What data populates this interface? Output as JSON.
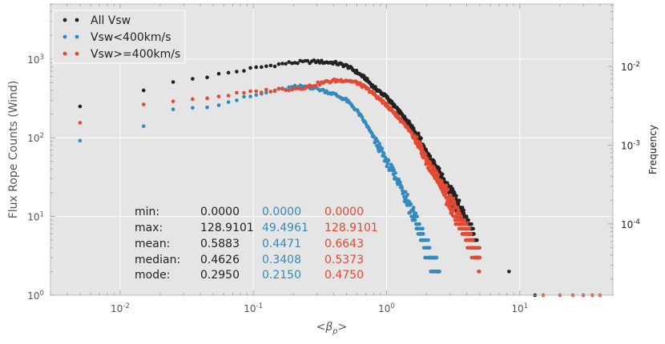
{
  "chart_data": {
    "type": "scatter",
    "title": "",
    "xlabel": "<β_p>",
    "ylabel": "Flux Rope Counts (Wind)",
    "ylabel_right": "Frequency",
    "x_scale": "log",
    "y_scale": "log",
    "xlim": [
      0.003,
      50
    ],
    "ylim": [
      1,
      5000
    ],
    "y2lim": [
      1.244e-05,
      0.0622
    ],
    "grid": true,
    "background": "#e5e5e5",
    "x_ticks": [
      {
        "value": 0.01,
        "base": "10",
        "exp": "-2"
      },
      {
        "value": 0.1,
        "base": "10",
        "exp": "-1"
      },
      {
        "value": 1,
        "base": "10",
        "exp": "0"
      },
      {
        "value": 10,
        "base": "10",
        "exp": "1"
      }
    ],
    "y_ticks": [
      {
        "value": 1,
        "base": "10",
        "exp": "0"
      },
      {
        "value": 10,
        "base": "10",
        "exp": "1"
      },
      {
        "value": 100,
        "base": "10",
        "exp": "2"
      },
      {
        "value": 1000,
        "base": "10",
        "exp": "3"
      }
    ],
    "y2_ticks": [
      {
        "value": 0.0001,
        "base": "10",
        "exp": "-4"
      },
      {
        "value": 0.001,
        "base": "10",
        "exp": "-3"
      },
      {
        "value": 0.01,
        "base": "10",
        "exp": "-2"
      }
    ],
    "legend": {
      "position": "top-left",
      "entries": [
        {
          "label": "All Vsw",
          "color": "#222222"
        },
        {
          "label": "Vsw<400km/s",
          "color": "#348abd"
        },
        {
          "label": "Vsw>=400km/s",
          "color": "#e24a33"
        }
      ]
    },
    "stats_table": {
      "rows": [
        {
          "label": "min:",
          "values": [
            "0.0000",
            "0.0000",
            "0.0000"
          ]
        },
        {
          "label": "max:",
          "values": [
            "128.9101",
            "49.4961",
            "128.9101"
          ]
        },
        {
          "label": "mean:",
          "values": [
            "0.5883",
            "0.4471",
            "0.6643"
          ]
        },
        {
          "label": "median:",
          "values": [
            "0.4626",
            "0.3408",
            "0.5373"
          ]
        },
        {
          "label": "mode:",
          "values": [
            "0.2950",
            "0.2150",
            "0.4750"
          ]
        }
      ]
    },
    "series": [
      {
        "name": "All Vsw",
        "color": "#222222",
        "anchors": [
          [
            0.005,
            250
          ],
          [
            0.015,
            400
          ],
          [
            0.025,
            510
          ],
          [
            0.035,
            560
          ],
          [
            0.05,
            620
          ],
          [
            0.07,
            680
          ],
          [
            0.1,
            760
          ],
          [
            0.15,
            850
          ],
          [
            0.2,
            900
          ],
          [
            0.25,
            920
          ],
          [
            0.3,
            930
          ],
          [
            0.35,
            910
          ],
          [
            0.4,
            900
          ],
          [
            0.5,
            820
          ],
          [
            0.6,
            680
          ],
          [
            0.7,
            560
          ],
          [
            0.8,
            440
          ],
          [
            1.0,
            330
          ],
          [
            1.2,
            230
          ],
          [
            1.5,
            150
          ],
          [
            1.8,
            90
          ],
          [
            2.0,
            60
          ],
          [
            2.5,
            35
          ],
          [
            3.0,
            20
          ],
          [
            3.5,
            12
          ],
          [
            4.0,
            8
          ],
          [
            4.5,
            5
          ],
          [
            5.0,
            3
          ]
        ],
        "tail": [
          [
            8.3,
            2
          ],
          [
            13.0,
            1
          ]
        ]
      },
      {
        "name": "Vsw<400km/s",
        "color": "#348abd",
        "anchors": [
          [
            0.005,
            92
          ],
          [
            0.015,
            140
          ],
          [
            0.025,
            230
          ],
          [
            0.035,
            240
          ],
          [
            0.05,
            260
          ],
          [
            0.07,
            295
          ],
          [
            0.1,
            340
          ],
          [
            0.15,
            400
          ],
          [
            0.2,
            440
          ],
          [
            0.25,
            450
          ],
          [
            0.3,
            420
          ],
          [
            0.35,
            390
          ],
          [
            0.4,
            360
          ],
          [
            0.5,
            300
          ],
          [
            0.6,
            220
          ],
          [
            0.7,
            150
          ],
          [
            0.8,
            100
          ],
          [
            0.9,
            70
          ],
          [
            1.0,
            50
          ],
          [
            1.2,
            30
          ],
          [
            1.4,
            18
          ],
          [
            1.6,
            10
          ],
          [
            1.8,
            6
          ],
          [
            2.0,
            4
          ],
          [
            2.2,
            2.5
          ],
          [
            2.5,
            2
          ]
        ],
        "tail": []
      },
      {
        "name": "Vsw>=400km/s",
        "color": "#e24a33",
        "anchors": [
          [
            0.005,
            155
          ],
          [
            0.015,
            265
          ],
          [
            0.025,
            290
          ],
          [
            0.035,
            310
          ],
          [
            0.05,
            330
          ],
          [
            0.07,
            355
          ],
          [
            0.1,
            380
          ],
          [
            0.15,
            410
          ],
          [
            0.2,
            420
          ],
          [
            0.25,
            440
          ],
          [
            0.3,
            480
          ],
          [
            0.35,
            510
          ],
          [
            0.4,
            530
          ],
          [
            0.5,
            540
          ],
          [
            0.6,
            500
          ],
          [
            0.7,
            430
          ],
          [
            0.8,
            360
          ],
          [
            1.0,
            260
          ],
          [
            1.2,
            190
          ],
          [
            1.5,
            120
          ],
          [
            1.8,
            75
          ],
          [
            2.0,
            50
          ],
          [
            2.5,
            28
          ],
          [
            3.0,
            15
          ],
          [
            3.5,
            9
          ],
          [
            4.0,
            6
          ],
          [
            4.5,
            4
          ],
          [
            5.0,
            3
          ]
        ],
        "tail": [
          [
            15,
            1
          ],
          [
            20,
            1
          ],
          [
            25,
            1
          ],
          [
            30,
            1
          ],
          [
            35,
            1
          ],
          [
            40,
            1
          ]
        ]
      }
    ]
  }
}
